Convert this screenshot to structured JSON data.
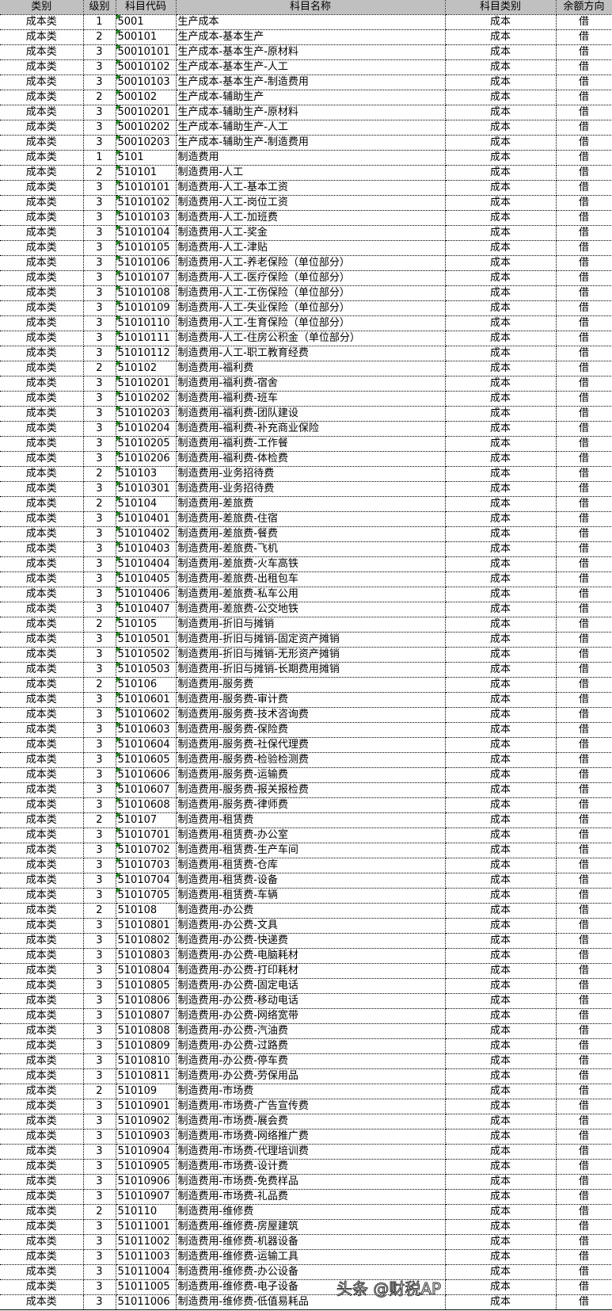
{
  "headers": [
    "类别",
    "级别",
    "科目代码",
    "科目名称",
    "科目类别",
    "余额方向"
  ],
  "watermark": "头条 @财税AP",
  "flag_color": "#1e8a1e",
  "rows": [
    {
      "cat": "成本类",
      "level": "1",
      "code": "5001",
      "name": "生产成本",
      "type": "成本",
      "dir": "借",
      "flag": true
    },
    {
      "cat": "成本类",
      "level": "2",
      "code": "500101",
      "name": "生产成本-基本生产",
      "type": "成本",
      "dir": "借",
      "flag": true
    },
    {
      "cat": "成本类",
      "level": "3",
      "code": "50010101",
      "name": "生产成本-基本生产-原材料",
      "type": "成本",
      "dir": "借",
      "flag": true
    },
    {
      "cat": "成本类",
      "level": "3",
      "code": "50010102",
      "name": "生产成本-基本生产-人工",
      "type": "成本",
      "dir": "借",
      "flag": true
    },
    {
      "cat": "成本类",
      "level": "3",
      "code": "50010103",
      "name": "生产成本-基本生产-制造费用",
      "type": "成本",
      "dir": "借",
      "flag": true
    },
    {
      "cat": "成本类",
      "level": "2",
      "code": "500102",
      "name": "生产成本-辅助生产",
      "type": "成本",
      "dir": "借",
      "flag": true
    },
    {
      "cat": "成本类",
      "level": "3",
      "code": "50010201",
      "name": "生产成本-辅助生产-原材料",
      "type": "成本",
      "dir": "借",
      "flag": true
    },
    {
      "cat": "成本类",
      "level": "3",
      "code": "50010202",
      "name": "生产成本-辅助生产-人工",
      "type": "成本",
      "dir": "借",
      "flag": true
    },
    {
      "cat": "成本类",
      "level": "3",
      "code": "50010203",
      "name": "生产成本-辅助生产-制造费用",
      "type": "成本",
      "dir": "借",
      "flag": true
    },
    {
      "cat": "成本类",
      "level": "1",
      "code": "5101",
      "name": "制造费用",
      "type": "成本",
      "dir": "借",
      "flag": true
    },
    {
      "cat": "成本类",
      "level": "2",
      "code": "510101",
      "name": "制造费用-人工",
      "type": "成本",
      "dir": "借",
      "flag": true
    },
    {
      "cat": "成本类",
      "level": "3",
      "code": "51010101",
      "name": "制造费用-人工-基本工资",
      "type": "成本",
      "dir": "借",
      "flag": true
    },
    {
      "cat": "成本类",
      "level": "3",
      "code": "51010102",
      "name": "制造费用-人工-岗位工资",
      "type": "成本",
      "dir": "借",
      "flag": true
    },
    {
      "cat": "成本类",
      "level": "3",
      "code": "51010103",
      "name": "制造费用-人工-加班费",
      "type": "成本",
      "dir": "借",
      "flag": true
    },
    {
      "cat": "成本类",
      "level": "3",
      "code": "51010104",
      "name": "制造费用-人工-奖金",
      "type": "成本",
      "dir": "借",
      "flag": true
    },
    {
      "cat": "成本类",
      "level": "3",
      "code": "51010105",
      "name": "制造费用-人工-津贴",
      "type": "成本",
      "dir": "借",
      "flag": true
    },
    {
      "cat": "成本类",
      "level": "3",
      "code": "51010106",
      "name": "制造费用-人工-养老保险（单位部分）",
      "type": "成本",
      "dir": "借",
      "flag": true
    },
    {
      "cat": "成本类",
      "level": "3",
      "code": "51010107",
      "name": "制造费用-人工-医疗保险（单位部分）",
      "type": "成本",
      "dir": "借",
      "flag": true
    },
    {
      "cat": "成本类",
      "level": "3",
      "code": "51010108",
      "name": "制造费用-人工-工伤保险（单位部分）",
      "type": "成本",
      "dir": "借",
      "flag": true
    },
    {
      "cat": "成本类",
      "level": "3",
      "code": "51010109",
      "name": "制造费用-人工-失业保险（单位部分）",
      "type": "成本",
      "dir": "借",
      "flag": true
    },
    {
      "cat": "成本类",
      "level": "3",
      "code": "51010110",
      "name": "制造费用-人工-生育保险（单位部分）",
      "type": "成本",
      "dir": "借",
      "flag": true
    },
    {
      "cat": "成本类",
      "level": "3",
      "code": "51010111",
      "name": "制造费用-人工-住房公积金（单位部分）",
      "type": "成本",
      "dir": "借",
      "flag": true
    },
    {
      "cat": "成本类",
      "level": "3",
      "code": "51010112",
      "name": "制造费用-人工-职工教育经费",
      "type": "成本",
      "dir": "借",
      "flag": true
    },
    {
      "cat": "成本类",
      "level": "2",
      "code": "510102",
      "name": "制造费用-福利费",
      "type": "成本",
      "dir": "借",
      "flag": true
    },
    {
      "cat": "成本类",
      "level": "3",
      "code": "51010201",
      "name": "制造费用-福利费-宿舍",
      "type": "成本",
      "dir": "借",
      "flag": true
    },
    {
      "cat": "成本类",
      "level": "3",
      "code": "51010202",
      "name": "制造费用-福利费-班车",
      "type": "成本",
      "dir": "借",
      "flag": true
    },
    {
      "cat": "成本类",
      "level": "3",
      "code": "51010203",
      "name": "制造费用-福利费-团队建设",
      "type": "成本",
      "dir": "借",
      "flag": true
    },
    {
      "cat": "成本类",
      "level": "3",
      "code": "51010204",
      "name": "制造费用-福利费-补充商业保险",
      "type": "成本",
      "dir": "借",
      "flag": true
    },
    {
      "cat": "成本类",
      "level": "3",
      "code": "51010205",
      "name": "制造费用-福利费-工作餐",
      "type": "成本",
      "dir": "借",
      "flag": true
    },
    {
      "cat": "成本类",
      "level": "3",
      "code": "51010206",
      "name": "制造费用-福利费-体检费",
      "type": "成本",
      "dir": "借",
      "flag": true
    },
    {
      "cat": "成本类",
      "level": "2",
      "code": "510103",
      "name": "制造费用-业务招待费",
      "type": "成本",
      "dir": "借",
      "flag": true
    },
    {
      "cat": "成本类",
      "level": "3",
      "code": "51010301",
      "name": "制造费用-业务招待费",
      "type": "成本",
      "dir": "借",
      "flag": true
    },
    {
      "cat": "成本类",
      "level": "2",
      "code": "510104",
      "name": "制造费用-差旅费",
      "type": "成本",
      "dir": "借",
      "flag": true
    },
    {
      "cat": "成本类",
      "level": "3",
      "code": "51010401",
      "name": "制造费用-差旅费-住宿",
      "type": "成本",
      "dir": "借",
      "flag": true
    },
    {
      "cat": "成本类",
      "level": "3",
      "code": "51010402",
      "name": "制造费用-差旅费-餐费",
      "type": "成本",
      "dir": "借",
      "flag": true
    },
    {
      "cat": "成本类",
      "level": "3",
      "code": "51010403",
      "name": "制造费用-差旅费-飞机",
      "type": "成本",
      "dir": "借",
      "flag": true
    },
    {
      "cat": "成本类",
      "level": "3",
      "code": "51010404",
      "name": "制造费用-差旅费-火车高铁",
      "type": "成本",
      "dir": "借",
      "flag": true
    },
    {
      "cat": "成本类",
      "level": "3",
      "code": "51010405",
      "name": "制造费用-差旅费-出租包车",
      "type": "成本",
      "dir": "借",
      "flag": true
    },
    {
      "cat": "成本类",
      "level": "3",
      "code": "51010406",
      "name": "制造费用-差旅费-私车公用",
      "type": "成本",
      "dir": "借",
      "flag": true
    },
    {
      "cat": "成本类",
      "level": "3",
      "code": "51010407",
      "name": "制造费用-差旅费-公交地铁",
      "type": "成本",
      "dir": "借",
      "flag": true
    },
    {
      "cat": "成本类",
      "level": "2",
      "code": "510105",
      "name": "制造费用-折旧与摊销",
      "type": "成本",
      "dir": "借",
      "flag": true
    },
    {
      "cat": "成本类",
      "level": "3",
      "code": "51010501",
      "name": "制造费用-折旧与摊销-固定资产摊销",
      "type": "成本",
      "dir": "借",
      "flag": true
    },
    {
      "cat": "成本类",
      "level": "3",
      "code": "51010502",
      "name": "制造费用-折旧与摊销-无形资产摊销",
      "type": "成本",
      "dir": "借",
      "flag": true
    },
    {
      "cat": "成本类",
      "level": "3",
      "code": "51010503",
      "name": "制造费用-折旧与摊销-长期费用摊销",
      "type": "成本",
      "dir": "借",
      "flag": true
    },
    {
      "cat": "成本类",
      "level": "2",
      "code": "510106",
      "name": "制造费用-服务费",
      "type": "成本",
      "dir": "借",
      "flag": true
    },
    {
      "cat": "成本类",
      "level": "3",
      "code": "51010601",
      "name": "制造费用-服务费-审计费",
      "type": "成本",
      "dir": "借",
      "flag": true
    },
    {
      "cat": "成本类",
      "level": "3",
      "code": "51010602",
      "name": "制造费用-服务费-技术咨询费",
      "type": "成本",
      "dir": "借",
      "flag": true
    },
    {
      "cat": "成本类",
      "level": "3",
      "code": "51010603",
      "name": "制造费用-服务费-保险费",
      "type": "成本",
      "dir": "借",
      "flag": true
    },
    {
      "cat": "成本类",
      "level": "3",
      "code": "51010604",
      "name": "制造费用-服务费-社保代理费",
      "type": "成本",
      "dir": "借",
      "flag": true
    },
    {
      "cat": "成本类",
      "level": "3",
      "code": "51010605",
      "name": "制造费用-服务费-检验检测费",
      "type": "成本",
      "dir": "借",
      "flag": true
    },
    {
      "cat": "成本类",
      "level": "3",
      "code": "51010606",
      "name": "制造费用-服务费-运输费",
      "type": "成本",
      "dir": "借",
      "flag": true
    },
    {
      "cat": "成本类",
      "level": "3",
      "code": "51010607",
      "name": "制造费用-服务费-报关报检费",
      "type": "成本",
      "dir": "借",
      "flag": true
    },
    {
      "cat": "成本类",
      "level": "3",
      "code": "51010608",
      "name": "制造费用-服务费-律师费",
      "type": "成本",
      "dir": "借",
      "flag": true
    },
    {
      "cat": "成本类",
      "level": "2",
      "code": "510107",
      "name": "制造费用-租赁费",
      "type": "成本",
      "dir": "借",
      "flag": true
    },
    {
      "cat": "成本类",
      "level": "3",
      "code": "51010701",
      "name": "制造费用-租赁费-办公室",
      "type": "成本",
      "dir": "借",
      "flag": true
    },
    {
      "cat": "成本类",
      "level": "3",
      "code": "51010702",
      "name": "制造费用-租赁费-生产车间",
      "type": "成本",
      "dir": "借",
      "flag": true
    },
    {
      "cat": "成本类",
      "level": "3",
      "code": "51010703",
      "name": "制造费用-租赁费-仓库",
      "type": "成本",
      "dir": "借",
      "flag": true
    },
    {
      "cat": "成本类",
      "level": "3",
      "code": "51010704",
      "name": "制造费用-租赁费-设备",
      "type": "成本",
      "dir": "借",
      "flag": true
    },
    {
      "cat": "成本类",
      "level": "3",
      "code": "51010705",
      "name": "制造费用-租赁费-车辆",
      "type": "成本",
      "dir": "借",
      "flag": true
    },
    {
      "cat": "成本类",
      "level": "2",
      "code": "510108",
      "name": "制造费用-办公费",
      "type": "成本",
      "dir": "借",
      "flag": false
    },
    {
      "cat": "成本类",
      "level": "3",
      "code": "51010801",
      "name": "制造费用-办公费-文具",
      "type": "成本",
      "dir": "借",
      "flag": false
    },
    {
      "cat": "成本类",
      "level": "3",
      "code": "51010802",
      "name": "制造费用-办公费-快递费",
      "type": "成本",
      "dir": "借",
      "flag": false
    },
    {
      "cat": "成本类",
      "level": "3",
      "code": "51010803",
      "name": "制造费用-办公费-电脑耗材",
      "type": "成本",
      "dir": "借",
      "flag": false
    },
    {
      "cat": "成本类",
      "level": "3",
      "code": "51010804",
      "name": "制造费用-办公费-打印耗材",
      "type": "成本",
      "dir": "借",
      "flag": false
    },
    {
      "cat": "成本类",
      "level": "3",
      "code": "51010805",
      "name": "制造费用-办公费-固定电话",
      "type": "成本",
      "dir": "借",
      "flag": false
    },
    {
      "cat": "成本类",
      "level": "3",
      "code": "51010806",
      "name": "制造费用-办公费-移动电话",
      "type": "成本",
      "dir": "借",
      "flag": false
    },
    {
      "cat": "成本类",
      "level": "3",
      "code": "51010807",
      "name": "制造费用-办公费-网络宽带",
      "type": "成本",
      "dir": "借",
      "flag": false
    },
    {
      "cat": "成本类",
      "level": "3",
      "code": "51010808",
      "name": "制造费用-办公费-汽油费",
      "type": "成本",
      "dir": "借",
      "flag": false
    },
    {
      "cat": "成本类",
      "level": "3",
      "code": "51010809",
      "name": "制造费用-办公费-过路费",
      "type": "成本",
      "dir": "借",
      "flag": false
    },
    {
      "cat": "成本类",
      "level": "3",
      "code": "51010810",
      "name": "制造费用-办公费-停车费",
      "type": "成本",
      "dir": "借",
      "flag": false
    },
    {
      "cat": "成本类",
      "level": "3",
      "code": "51010811",
      "name": "制造费用-办公费-劳保用品",
      "type": "成本",
      "dir": "借",
      "flag": false
    },
    {
      "cat": "成本类",
      "level": "2",
      "code": "510109",
      "name": "制造费用-市场费",
      "type": "成本",
      "dir": "借",
      "flag": false
    },
    {
      "cat": "成本类",
      "level": "3",
      "code": "51010901",
      "name": "制造费用-市场费-广告宣传费",
      "type": "成本",
      "dir": "借",
      "flag": false
    },
    {
      "cat": "成本类",
      "level": "3",
      "code": "51010902",
      "name": "制造费用-市场费-展会费",
      "type": "成本",
      "dir": "借",
      "flag": false
    },
    {
      "cat": "成本类",
      "level": "3",
      "code": "51010903",
      "name": "制造费用-市场费-网络推广费",
      "type": "成本",
      "dir": "借",
      "flag": false
    },
    {
      "cat": "成本类",
      "level": "3",
      "code": "51010904",
      "name": "制造费用-市场费-代理培训费",
      "type": "成本",
      "dir": "借",
      "flag": false
    },
    {
      "cat": "成本类",
      "level": "3",
      "code": "51010905",
      "name": "制造费用-市场费-设计费",
      "type": "成本",
      "dir": "借",
      "flag": false
    },
    {
      "cat": "成本类",
      "level": "3",
      "code": "51010906",
      "name": "制造费用-市场费-免费样品",
      "type": "成本",
      "dir": "借",
      "flag": false
    },
    {
      "cat": "成本类",
      "level": "3",
      "code": "51010907",
      "name": "制造费用-市场费-礼品费",
      "type": "成本",
      "dir": "借",
      "flag": false
    },
    {
      "cat": "成本类",
      "level": "2",
      "code": "510110",
      "name": "制造费用-维修费",
      "type": "成本",
      "dir": "借",
      "flag": false
    },
    {
      "cat": "成本类",
      "level": "3",
      "code": "51011001",
      "name": "制造费用-维修费-房屋建筑",
      "type": "成本",
      "dir": "借",
      "flag": false
    },
    {
      "cat": "成本类",
      "level": "3",
      "code": "51011002",
      "name": "制造费用-维修费-机器设备",
      "type": "成本",
      "dir": "借",
      "flag": false
    },
    {
      "cat": "成本类",
      "level": "3",
      "code": "51011003",
      "name": "制造费用-维修费-运输工具",
      "type": "成本",
      "dir": "借",
      "flag": false
    },
    {
      "cat": "成本类",
      "level": "3",
      "code": "51011004",
      "name": "制造费用-维修费-办公设备",
      "type": "成本",
      "dir": "借",
      "flag": false
    },
    {
      "cat": "成本类",
      "level": "3",
      "code": "51011005",
      "name": "制造费用-维修费-电子设备",
      "type": "成本",
      "dir": "借",
      "flag": false
    },
    {
      "cat": "成本类",
      "level": "3",
      "code": "51011006",
      "name": "制造费用-维修费-低值易耗品",
      "type": "成本",
      "dir": "借",
      "flag": false
    }
  ]
}
